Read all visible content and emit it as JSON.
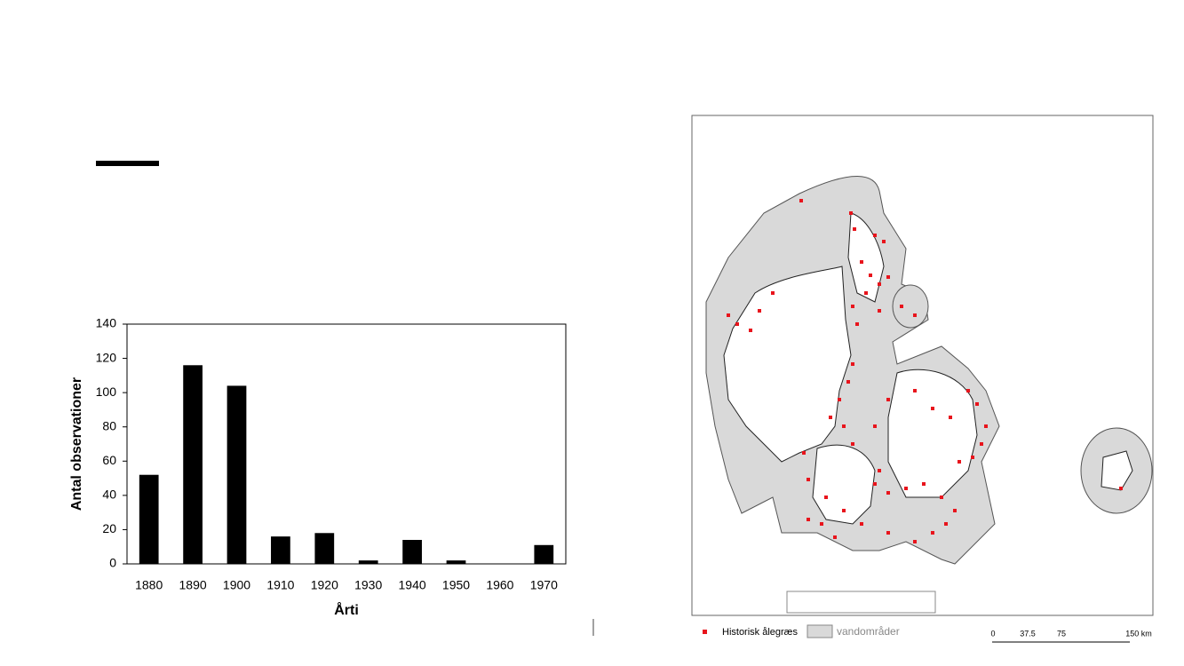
{
  "chart_data": {
    "type": "bar",
    "x_label": "Årti",
    "y_label": "Antal observationer",
    "categories": [
      "1880",
      "1890",
      "1900",
      "1910",
      "1920",
      "1930",
      "1940",
      "1950",
      "1960",
      "1970"
    ],
    "values": [
      52,
      116,
      104,
      16,
      18,
      2,
      14,
      2,
      0,
      11
    ],
    "color": "#000000",
    "ylim": [
      0,
      140
    ],
    "yticks": [
      0,
      20,
      40,
      60,
      80,
      100,
      120,
      140
    ],
    "grid": false
  },
  "map": {
    "legend": [
      "Historisk ålegræs",
      "vandområder"
    ],
    "scale": [
      "0",
      "37.5",
      "75",
      "150 km"
    ]
  }
}
